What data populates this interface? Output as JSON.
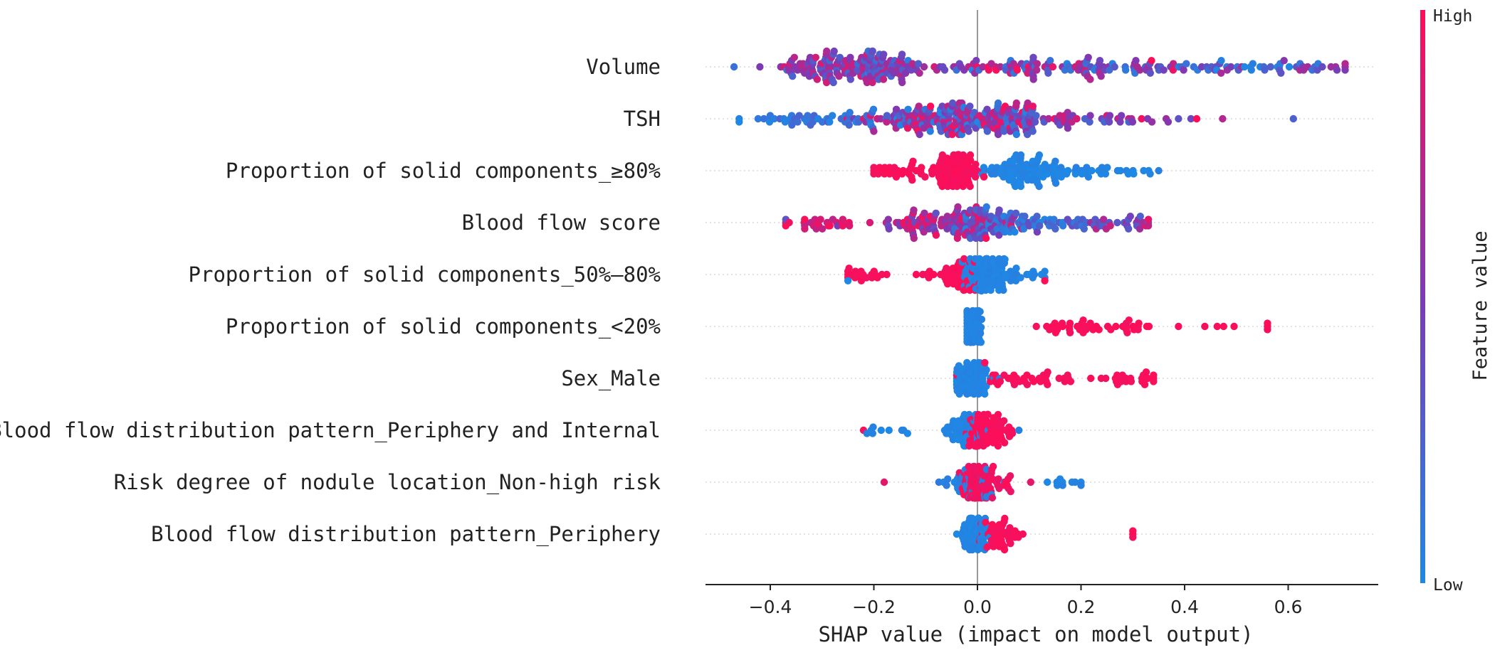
{
  "chart_data": {
    "type": "scatter",
    "subtype": "shap-beeswarm",
    "xlabel": "SHAP value (impact on model output)",
    "xlim": [
      -0.52,
      0.78
    ],
    "xticks": [
      -0.4,
      -0.2,
      0.0,
      0.2,
      0.4,
      0.6
    ],
    "xtick_labels": [
      "−0.4",
      "−0.2",
      "0.0",
      "0.2",
      "0.4",
      "0.6"
    ],
    "colorbar": {
      "title": "Feature value",
      "high_label": "High",
      "low_label": "Low",
      "low_color": "#1e88e5",
      "mid_color": "#7c3ab6",
      "high_color": "#ff0d57"
    },
    "features": [
      {
        "name": "Volume",
        "min": -0.47,
        "max": 0.71,
        "n": 340,
        "clusters": [
          {
            "c": -0.24,
            "s": 0.07,
            "w": 0.45,
            "f": [
              0.15,
              0.85
            ]
          },
          {
            "c": 0.08,
            "s": 0.18,
            "w": 0.35,
            "f": [
              0.0,
              1.0
            ]
          },
          {
            "c": 0.5,
            "s": 0.13,
            "w": 0.2,
            "f": [
              0.0,
              0.7
            ]
          }
        ]
      },
      {
        "name": "TSH",
        "min": -0.46,
        "max": 0.61,
        "n": 320,
        "clusters": [
          {
            "c": -0.03,
            "s": 0.09,
            "w": 0.65,
            "f": [
              0.0,
              1.0
            ]
          },
          {
            "c": 0.15,
            "s": 0.12,
            "w": 0.2,
            "f": [
              0.2,
              1.0
            ]
          },
          {
            "c": -0.3,
            "s": 0.09,
            "w": 0.15,
            "f": [
              0.0,
              0.25
            ]
          }
        ]
      },
      {
        "name": "Proportion of solid components_≥80%",
        "min": -0.2,
        "max": 0.35,
        "n": 230,
        "clusters": [
          {
            "c": -0.04,
            "s": 0.025,
            "w": 0.35,
            "f": [
              0.95,
              1.0
            ]
          },
          {
            "c": -0.13,
            "s": 0.04,
            "w": 0.15,
            "f": [
              0.95,
              1.0
            ]
          },
          {
            "c": 0.09,
            "s": 0.04,
            "w": 0.35,
            "f": [
              0.0,
              0.05
            ]
          },
          {
            "c": 0.22,
            "s": 0.07,
            "w": 0.15,
            "f": [
              0.0,
              0.05
            ]
          }
        ]
      },
      {
        "name": "Blood flow score",
        "min": -0.37,
        "max": 0.33,
        "n": 260,
        "clusters": [
          {
            "c": -0.06,
            "s": 0.07,
            "w": 0.45,
            "f": [
              0.35,
              1.0
            ]
          },
          {
            "c": 0.07,
            "s": 0.07,
            "w": 0.35,
            "f": [
              0.0,
              0.4
            ]
          },
          {
            "c": -0.3,
            "s": 0.05,
            "w": 0.1,
            "f": [
              0.7,
              1.0
            ]
          },
          {
            "c": 0.27,
            "s": 0.04,
            "w": 0.1,
            "f": [
              0.2,
              0.9
            ]
          }
        ]
      },
      {
        "name": "Proportion of solid components_50%–80%",
        "min": -0.25,
        "max": 0.13,
        "n": 200,
        "clusters": [
          {
            "c": 0.015,
            "s": 0.025,
            "w": 0.55,
            "f": [
              0.0,
              0.05
            ]
          },
          {
            "c": 0.08,
            "s": 0.025,
            "w": 0.1,
            "f": [
              0.0,
              0.05
            ]
          },
          {
            "c": -0.04,
            "s": 0.025,
            "w": 0.25,
            "f": [
              0.95,
              1.0
            ]
          },
          {
            "c": -0.2,
            "s": 0.03,
            "w": 0.1,
            "f": [
              0.95,
              1.0
            ]
          }
        ]
      },
      {
        "name": "Proportion of solid components_<20%",
        "min": -0.02,
        "max": 0.56,
        "n": 170,
        "clusters": [
          {
            "c": -0.008,
            "s": 0.008,
            "w": 0.7,
            "f": [
              0.0,
              0.05
            ]
          },
          {
            "c": 0.23,
            "s": 0.06,
            "w": 0.26,
            "f": [
              0.95,
              1.0
            ]
          },
          {
            "c": 0.49,
            "s": 0.05,
            "w": 0.04,
            "f": [
              0.95,
              1.0
            ]
          }
        ]
      },
      {
        "name": "Sex_Male",
        "min": -0.04,
        "max": 0.34,
        "n": 170,
        "clusters": [
          {
            "c": -0.005,
            "s": 0.015,
            "w": 0.65,
            "f": [
              0.0,
              0.05
            ]
          },
          {
            "c": 0.11,
            "s": 0.05,
            "w": 0.23,
            "f": [
              0.95,
              1.0
            ]
          },
          {
            "c": 0.3,
            "s": 0.03,
            "w": 0.12,
            "f": [
              0.95,
              1.0
            ]
          }
        ]
      },
      {
        "name": "Blood flow distribution pattern_Periphery and Internal",
        "min": -0.22,
        "max": 0.08,
        "n": 170,
        "clusters": [
          {
            "c": 0.01,
            "s": 0.015,
            "w": 0.55,
            "f": [
              0.95,
              1.0
            ]
          },
          {
            "c": 0.05,
            "s": 0.015,
            "w": 0.1,
            "f": [
              0.95,
              1.0
            ]
          },
          {
            "c": -0.03,
            "s": 0.02,
            "w": 0.3,
            "f": [
              0.0,
              0.05
            ]
          },
          {
            "c": -0.18,
            "s": 0.04,
            "w": 0.05,
            "f": [
              0.0,
              0.05
            ]
          }
        ]
      },
      {
        "name": "Risk degree of nodule location_Non-high risk",
        "min": -0.18,
        "max": 0.2,
        "n": 170,
        "clusters": [
          {
            "c": 0.0,
            "s": 0.012,
            "w": 0.6,
            "f": [
              0.9,
              1.0
            ]
          },
          {
            "c": -0.02,
            "s": 0.03,
            "w": 0.2,
            "f": [
              0.0,
              0.1
            ]
          },
          {
            "c": 0.04,
            "s": 0.03,
            "w": 0.15,
            "f": [
              0.9,
              1.0
            ]
          },
          {
            "c": 0.17,
            "s": 0.03,
            "w": 0.05,
            "f": [
              0.0,
              0.05
            ]
          }
        ]
      },
      {
        "name": "Blood flow distribution pattern_Periphery",
        "min": -0.04,
        "max": 0.3,
        "n": 160,
        "clusters": [
          {
            "c": -0.005,
            "s": 0.012,
            "w": 0.7,
            "f": [
              0.0,
              0.05
            ]
          },
          {
            "c": 0.05,
            "s": 0.02,
            "w": 0.29,
            "f": [
              0.95,
              1.0
            ]
          },
          {
            "c": 0.3,
            "s": 0.005,
            "w": 0.01,
            "f": [
              0.95,
              1.0
            ]
          }
        ]
      }
    ]
  }
}
